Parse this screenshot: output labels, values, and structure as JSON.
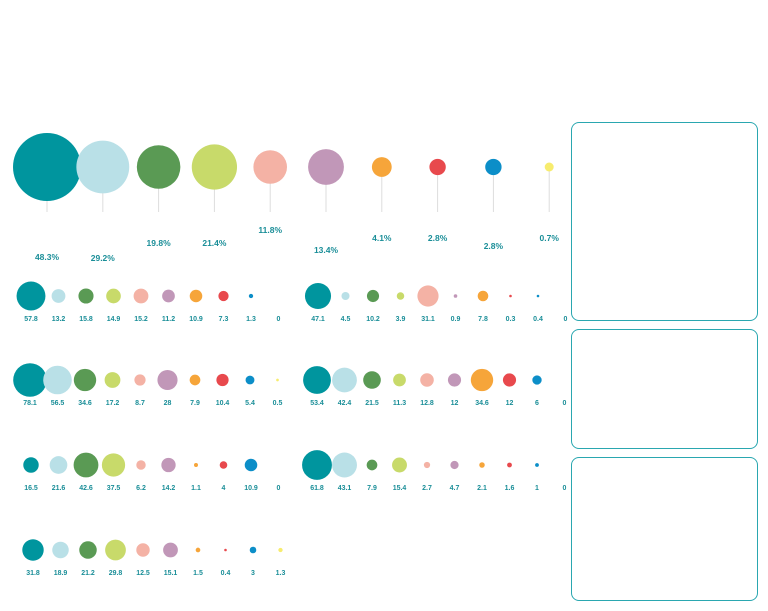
{
  "chart_data": [
    {
      "type": "bubble",
      "name": "summary",
      "colors": [
        "#00959e",
        "#b9e0e7",
        "#5a9a54",
        "#c8da6a",
        "#f4b2a5",
        "#c197b8",
        "#f6a53a",
        "#e8494d",
        "#0c8ec8",
        "#f7ec6e"
      ],
      "labels": [
        "48.3%",
        "29.2%",
        "19.8%",
        "21.4%",
        "11.8%",
        "13.4%",
        "4.1%",
        "2.8%",
        "2.8%",
        "0.7%"
      ],
      "values": [
        48.3,
        29.2,
        19.8,
        21.4,
        11.8,
        13.4,
        4.1,
        2.8,
        2.8,
        0.7
      ]
    },
    {
      "type": "bubble",
      "name": "group-1",
      "labels": [
        "57.8",
        "13.2",
        "15.8",
        "14.9",
        "15.2",
        "11.2",
        "10.9",
        "7.3",
        "1.3",
        "0"
      ],
      "values": [
        57.8,
        13.2,
        15.8,
        14.9,
        15.2,
        11.2,
        10.9,
        7.3,
        1.3,
        0
      ]
    },
    {
      "type": "bubble",
      "name": "group-2",
      "labels": [
        "47.1",
        "4.5",
        "10.2",
        "3.9",
        "31.1",
        "0.9",
        "7.8",
        "0.3",
        "0.4",
        "0"
      ],
      "values": [
        47.1,
        4.5,
        10.2,
        3.9,
        31.1,
        0.9,
        7.8,
        0.3,
        0.4,
        0
      ]
    },
    {
      "type": "bubble",
      "name": "group-3",
      "labels": [
        "78.1",
        "56.5",
        "34.6",
        "17.2",
        "8.7",
        "28",
        "7.9",
        "10.4",
        "5.4",
        "0.5"
      ],
      "values": [
        78.1,
        56.5,
        34.6,
        17.2,
        8.7,
        28,
        7.9,
        10.4,
        5.4,
        0.5
      ]
    },
    {
      "type": "bubble",
      "name": "group-4",
      "labels": [
        "53.4",
        "42.4",
        "21.5",
        "11.3",
        "12.8",
        "12",
        "34.6",
        "12",
        "6",
        "0"
      ],
      "values": [
        53.4,
        42.4,
        21.5,
        11.3,
        12.8,
        12,
        34.6,
        12,
        6,
        0
      ]
    },
    {
      "type": "bubble",
      "name": "group-5",
      "labels": [
        "16.5",
        "21.6",
        "42.6",
        "37.5",
        "6.2",
        "14.2",
        "1.1",
        "4",
        "10.9",
        "0"
      ],
      "values": [
        16.5,
        21.6,
        42.6,
        37.5,
        6.2,
        14.2,
        1.1,
        4,
        10.9,
        0
      ]
    },
    {
      "type": "bubble",
      "name": "group-6",
      "labels": [
        "61.8",
        "43.1",
        "7.9",
        "15.4",
        "2.7",
        "4.7",
        "2.1",
        "1.6",
        "1",
        "0"
      ],
      "values": [
        61.8,
        43.1,
        7.9,
        15.4,
        2.7,
        4.7,
        2.1,
        1.6,
        1,
        0
      ]
    },
    {
      "type": "bubble",
      "name": "group-7",
      "labels": [
        "31.8",
        "18.9",
        "21.2",
        "29.8",
        "12.5",
        "15.1",
        "1.5",
        "0.4",
        "3",
        "1.3"
      ],
      "values": [
        31.8,
        18.9,
        21.2,
        29.8,
        12.5,
        15.1,
        1.5,
        0.4,
        3,
        1.3
      ]
    }
  ]
}
